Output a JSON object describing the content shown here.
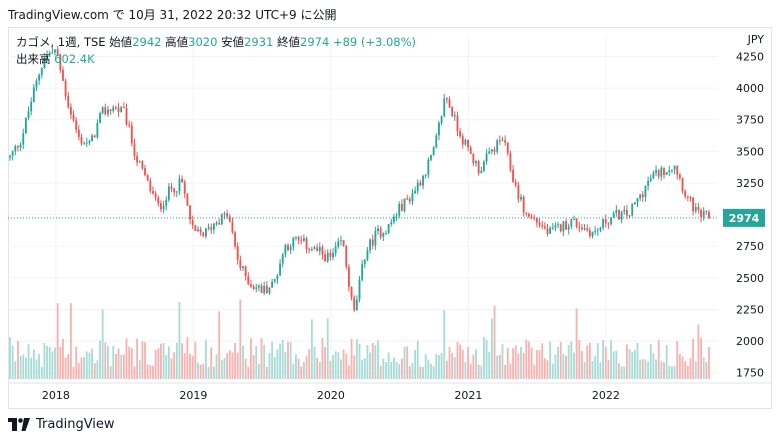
{
  "header": {
    "source": "TradingView.com で 10月 31, 2022 20:32 UTC+9 に公開"
  },
  "legend": {
    "symbol": "カゴメ, 1週, TSE",
    "open_label": "始値",
    "open": "2942",
    "high_label": "高値",
    "high": "3020",
    "low_label": "安値",
    "low": "2931",
    "close_label": "終値",
    "close": "2974",
    "change": "+89 (+3.08%)",
    "volume_label": "出来高",
    "volume": "602.4K"
  },
  "footer": {
    "brand": "TradingView"
  },
  "colors": {
    "up": "#26a69a",
    "down": "#ef5350",
    "up_vol": "#a9dcd7",
    "down_vol": "#f7b3b1",
    "last": "#26a69a"
  },
  "chart_data": {
    "type": "candlestick",
    "currency": "JPY",
    "y_ticks": [
      1750,
      2000,
      2250,
      2500,
      2750,
      3000,
      3250,
      3500,
      3750,
      4000,
      4250
    ],
    "ylim": [
      1700,
      4420
    ],
    "x_ticks": [
      "2018",
      "2019",
      "2020",
      "2021",
      "2022"
    ],
    "last_price": "2974",
    "close_anchors": [
      [
        "2017-09",
        3450
      ],
      [
        "2017-10",
        3600
      ],
      [
        "2017-11",
        3950
      ],
      [
        "2017-12",
        4250
      ],
      [
        "2018-01",
        4300
      ],
      [
        "2018-02",
        3900
      ],
      [
        "2018-03",
        3600
      ],
      [
        "2018-04",
        3550
      ],
      [
        "2018-05",
        3800
      ],
      [
        "2018-06",
        3850
      ],
      [
        "2018-07",
        3800
      ],
      [
        "2018-08",
        3450
      ],
      [
        "2018-09",
        3250
      ],
      [
        "2018-10",
        3050
      ],
      [
        "2018-11",
        3200
      ],
      [
        "2018-12",
        3250
      ],
      [
        "2019-01",
        2850
      ],
      [
        "2019-02",
        2850
      ],
      [
        "2019-03",
        2950
      ],
      [
        "2019-04",
        3000
      ],
      [
        "2019-05",
        2600
      ],
      [
        "2019-06",
        2450
      ],
      [
        "2019-07",
        2400
      ],
      [
        "2019-08",
        2450
      ],
      [
        "2019-09",
        2750
      ],
      [
        "2019-10",
        2800
      ],
      [
        "2019-11",
        2750
      ],
      [
        "2019-12",
        2700
      ],
      [
        "2020-01",
        2650
      ],
      [
        "2020-02",
        2800
      ],
      [
        "2020-03",
        2200
      ],
      [
        "2020-04",
        2700
      ],
      [
        "2020-05",
        2850
      ],
      [
        "2020-06",
        2900
      ],
      [
        "2020-07",
        3050
      ],
      [
        "2020-08",
        3150
      ],
      [
        "2020-09",
        3300
      ],
      [
        "2020-10",
        3500
      ],
      [
        "2020-11",
        3950
      ],
      [
        "2020-12",
        3700
      ],
      [
        "2021-01",
        3500
      ],
      [
        "2021-02",
        3350
      ],
      [
        "2021-03",
        3500
      ],
      [
        "2021-04",
        3600
      ],
      [
        "2021-05",
        3250
      ],
      [
        "2021-06",
        3000
      ],
      [
        "2021-07",
        2950
      ],
      [
        "2021-08",
        2850
      ],
      [
        "2021-09",
        2900
      ],
      [
        "2021-10",
        2950
      ],
      [
        "2021-11",
        2900
      ],
      [
        "2021-12",
        2850
      ],
      [
        "2022-01",
        2950
      ],
      [
        "2022-02",
        3000
      ],
      [
        "2022-03",
        3000
      ],
      [
        "2022-04",
        3150
      ],
      [
        "2022-05",
        3300
      ],
      [
        "2022-06",
        3350
      ],
      [
        "2022-07",
        3400
      ],
      [
        "2022-08",
        3150
      ],
      [
        "2022-09",
        3000
      ],
      [
        "2022-10",
        2974
      ]
    ]
  }
}
